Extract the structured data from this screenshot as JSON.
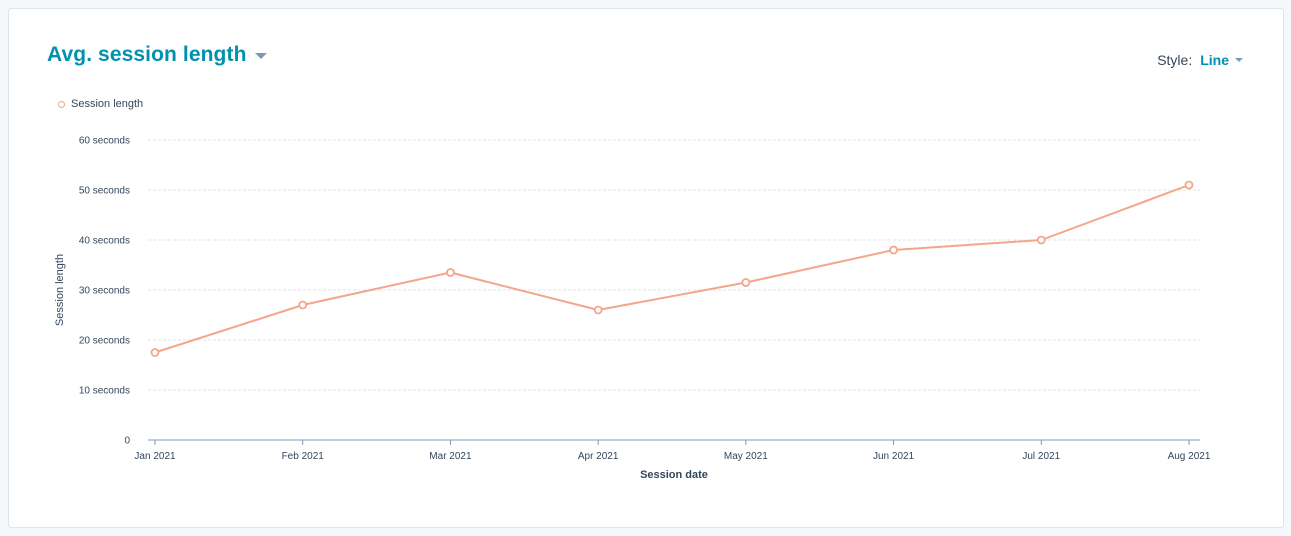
{
  "report": {
    "title": "Avg. session length",
    "style_label": "Style:",
    "style_value": "Line"
  },
  "colors": {
    "series": "#f5a58a",
    "title": "#0091ae",
    "grid": "#dfe3eb",
    "axis": "#7c98b6",
    "text": "#33475b"
  },
  "chart_data": {
    "type": "line",
    "categories": [
      "Jan 2021",
      "Feb 2021",
      "Mar 2021",
      "Apr 2021",
      "May 2021",
      "Jun 2021",
      "Jul 2021",
      "Aug 2021"
    ],
    "series": [
      {
        "name": "Session length",
        "values": [
          17.5,
          27,
          33.5,
          26,
          31.5,
          38,
          40,
          51
        ]
      }
    ],
    "xlabel": "Session date",
    "ylabel": "Session length",
    "ylim": [
      0,
      60
    ],
    "y_ticks": [
      0,
      10,
      20,
      30,
      40,
      50,
      60
    ],
    "y_tick_labels": [
      "0",
      "10 seconds",
      "20 seconds",
      "30 seconds",
      "40 seconds",
      "50 seconds",
      "60 seconds"
    ],
    "grid": true,
    "legend_position": "top-left"
  }
}
